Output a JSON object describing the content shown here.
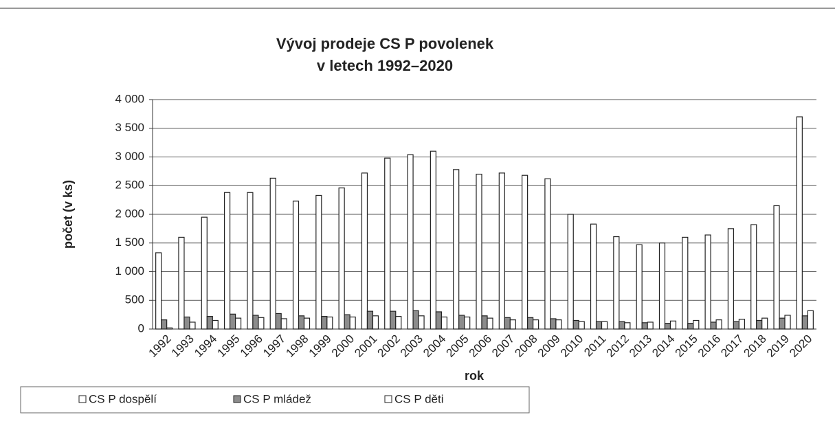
{
  "chart_data": {
    "type": "bar",
    "title": [
      "Vývoj prodeje CS P povolenek",
      "v letech 1992–2020"
    ],
    "x_label": "rok",
    "y_label": "počet (v ks)",
    "categories": [
      "1992",
      "1993",
      "1994",
      "1995",
      "1996",
      "1997",
      "1998",
      "1999",
      "2000",
      "2001",
      "2002",
      "2003",
      "2004",
      "2005",
      "2006",
      "2007",
      "2008",
      "2009",
      "2010",
      "2011",
      "2012",
      "2013",
      "2014",
      "2015",
      "2016",
      "2017",
      "2018",
      "2019",
      "2020"
    ],
    "series": [
      {
        "name": "CS P dospělí",
        "color": "#ffffff",
        "values": [
          1330,
          1600,
          1950,
          2380,
          2380,
          2630,
          2230,
          2330,
          2460,
          2720,
          2980,
          3040,
          3100,
          2780,
          2700,
          2720,
          2680,
          2620,
          2000,
          1830,
          1610,
          1470,
          1500,
          1600,
          1640,
          1750,
          1820,
          2150,
          3700
        ]
      },
      {
        "name": "CS P mládež",
        "color": "#8c8c8c",
        "values": [
          160,
          210,
          220,
          260,
          240,
          270,
          230,
          220,
          250,
          310,
          310,
          320,
          300,
          240,
          230,
          200,
          200,
          180,
          150,
          130,
          130,
          110,
          100,
          100,
          120,
          130,
          150,
          190,
          230
        ]
      },
      {
        "name": "CS P děti",
        "color": "#ffffff",
        "values": [
          20,
          120,
          150,
          190,
          200,
          180,
          190,
          210,
          210,
          230,
          220,
          230,
          210,
          210,
          190,
          160,
          160,
          160,
          130,
          130,
          110,
          120,
          140,
          150,
          160,
          170,
          190,
          240,
          320
        ]
      }
    ],
    "ylim": [
      0,
      4000
    ],
    "yticks": [
      0,
      500,
      {
        "value": 1000,
        "label": "1 000"
      },
      {
        "value": 1500,
        "label": "1 500"
      },
      {
        "value": 2000,
        "label": "2 000"
      },
      {
        "value": 2500,
        "label": "2 500"
      },
      {
        "value": 3000,
        "label": "3 000"
      },
      {
        "value": 3500,
        "label": "3 500"
      },
      {
        "value": 4000,
        "label": "4 000"
      }
    ],
    "grid": true,
    "legend": "bottom"
  }
}
